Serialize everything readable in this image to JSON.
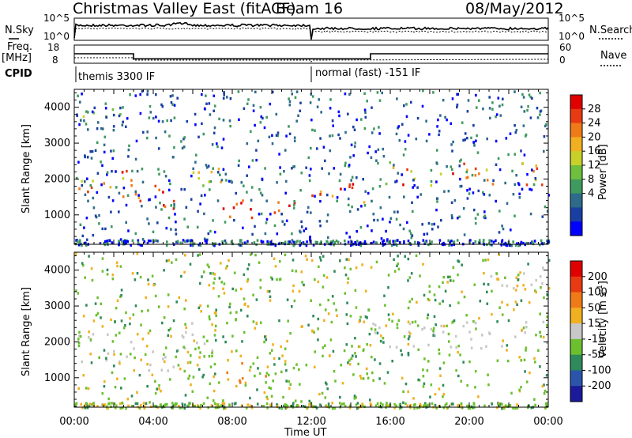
{
  "header": {
    "title": "Christmas Valley East (fitACF)",
    "beam": "Beam 16",
    "date": "08/May/2012"
  },
  "params": {
    "nsky_label": "N.Sky",
    "nsky_ticks": [
      "10^5",
      "10^0"
    ],
    "nsearch_label": "N.Search",
    "nsearch_ticks": [
      "10^5",
      "10^0"
    ],
    "freq_label_1": "Freq.",
    "freq_label_2": "[MHz]",
    "freq_ticks": [
      "18",
      "8"
    ],
    "nave_label": "Nave",
    "nave_ticks": [
      "60",
      "0"
    ],
    "cpid_label": "CPID",
    "cpid_modes": [
      {
        "name": "themis 3300 IF",
        "start_ut": 0,
        "end_ut": 12
      },
      {
        "name": "normal (fast) -151 IF",
        "start_ut": 12,
        "end_ut": 24
      }
    ],
    "freq_mhz": [
      {
        "start_ut": 0,
        "end_ut": 3,
        "value": 15.5
      },
      {
        "start_ut": 3,
        "end_ut": 12,
        "value": 11.5
      },
      {
        "start_ut": 12,
        "end_ut": 15,
        "value": 11.5
      },
      {
        "start_ut": 15,
        "end_ut": 24,
        "value": 15.5
      }
    ]
  },
  "chart_data": [
    {
      "type": "heatmap",
      "name": "power",
      "ylabel": "Slant Range [km]",
      "xlabel": "Time UT",
      "x_ticks": [
        "00:00",
        "04:00",
        "08:00",
        "12:00",
        "16:00",
        "20:00",
        "00:00"
      ],
      "xlim_ut_hours": [
        0,
        24
      ],
      "y_ticks": [
        "1000",
        "2000",
        "3000",
        "4000"
      ],
      "ylim_km": [
        180,
        4500
      ],
      "colorbar": {
        "label": "Power [dB]",
        "ticks": [
          "28",
          "24",
          "20",
          "16",
          "12",
          "8",
          "4"
        ],
        "range": [
          0,
          30
        ],
        "colors": [
          "#0000ff",
          "#1a3fa3",
          "#2e6b8a",
          "#3f9a5f",
          "#6fbf3f",
          "#c8d02a",
          "#f0b020",
          "#f07a18",
          "#e83a12",
          "#e00000"
        ]
      },
      "echo_regions": [
        {
          "t0": 0.0,
          "t1": 2.9,
          "r0": 1450,
          "r1": 2300,
          "level_db": 22
        },
        {
          "t0": 2.9,
          "t1": 5.4,
          "r0": 1200,
          "r1": 1850,
          "level_db": 26
        },
        {
          "t0": 5.4,
          "t1": 7.5,
          "r0": 1750,
          "r1": 2600,
          "level_db": 14
        },
        {
          "t0": 7.3,
          "t1": 11.3,
          "r0": 900,
          "r1": 1600,
          "level_db": 28
        },
        {
          "t0": 12.0,
          "t1": 14.8,
          "r0": 1350,
          "r1": 2000,
          "level_db": 24
        },
        {
          "t0": 14.8,
          "t1": 16.5,
          "r0": 1900,
          "r1": 2700,
          "level_db": 14
        },
        {
          "t0": 16.5,
          "t1": 24.0,
          "r0": 1850,
          "r1": 2500,
          "level_db": 22
        },
        {
          "t0": 20.5,
          "t1": 24.0,
          "r0": 3500,
          "r1": 4100,
          "level_db": 10
        },
        {
          "t0": 0.2,
          "t1": 2.5,
          "r0": 3400,
          "r1": 4100,
          "level_db": 10
        }
      ]
    },
    {
      "type": "heatmap",
      "name": "velocity",
      "ylabel": "Slant Range [km]",
      "xlabel": "Time UT",
      "x_ticks": [
        "00:00",
        "04:00",
        "08:00",
        "12:00",
        "16:00",
        "20:00",
        "00:00"
      ],
      "xlim_ut_hours": [
        0,
        24
      ],
      "y_ticks": [
        "1000",
        "2000",
        "3000",
        "4000"
      ],
      "ylim_km": [
        180,
        4500
      ],
      "colorbar": {
        "label": "Velocity [m s",
        "label_sup": "-1",
        "label_end": "]",
        "ticks": [
          "200",
          "100",
          "50",
          "15",
          "-15",
          "-50",
          "-100",
          "-200"
        ],
        "colors": [
          "#1a1a9a",
          "#2a55aa",
          "#2e8a5a",
          "#6cc030",
          "#c8c8c8",
          "#f0b020",
          "#f07a18",
          "#e83a12",
          "#e00000"
        ]
      },
      "echo_regions": [
        {
          "t0": 0.0,
          "t1": 2.9,
          "r0": 1450,
          "r1": 2300,
          "vel": 0
        },
        {
          "t0": 2.9,
          "t1": 5.4,
          "r0": 1200,
          "r1": 1850,
          "vel": 0
        },
        {
          "t0": 5.4,
          "t1": 7.5,
          "r0": 1750,
          "r1": 2600,
          "vel": 0
        },
        {
          "t0": 7.3,
          "t1": 9.8,
          "r0": 900,
          "r1": 1600,
          "vel": -60
        },
        {
          "t0": 9.8,
          "t1": 11.3,
          "r0": 900,
          "r1": 1600,
          "vel": 40
        },
        {
          "t0": 12.0,
          "t1": 14.8,
          "r0": 1350,
          "r1": 2000,
          "vel": 40
        },
        {
          "t0": 14.8,
          "t1": 24.0,
          "r0": 1850,
          "r1": 2600,
          "vel": 0
        },
        {
          "t0": 20.5,
          "t1": 24.0,
          "r0": 3500,
          "r1": 4100,
          "vel": 0
        }
      ]
    }
  ]
}
